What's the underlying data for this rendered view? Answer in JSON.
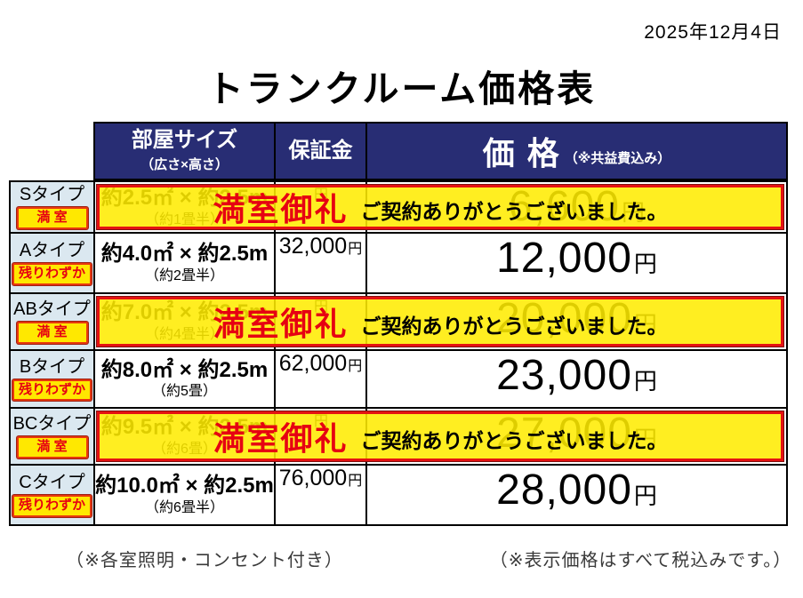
{
  "date": "2025年12月4日",
  "title": "トランクルーム価格表",
  "table": {
    "header": {
      "size_label": "部屋サイズ",
      "size_sub": "（広さ×高さ）",
      "deposit_label": "保証金",
      "price_label": "価 格",
      "price_sub": "（※共益費込み）"
    },
    "currency": "円",
    "rows": [
      {
        "type_label": "Sタイプ",
        "badge": "満 室",
        "status": "full",
        "size": "約2.5㎡ × 約2.5m",
        "size_sub": "（約1畳半）",
        "deposit": "",
        "price": "6,600",
        "banner_headline": "満室御礼",
        "banner_message": "ご契約ありがとうございました。"
      },
      {
        "type_label": "Aタイプ",
        "badge": "残りわずか",
        "status": "few",
        "size": "約4.0㎡ × 約2.5m",
        "size_sub": "（約2畳半）",
        "deposit": "32,000",
        "price": "12,000"
      },
      {
        "type_label": "ABタイプ",
        "badge": "満 室",
        "status": "full",
        "size": "約7.0㎡ × 約2.5m",
        "size_sub": "（約4畳半）",
        "deposit": "",
        "price": "20,000",
        "banner_headline": "満室御礼",
        "banner_message": "ご契約ありがとうございました。"
      },
      {
        "type_label": "Bタイプ",
        "badge": "残りわずか",
        "status": "few",
        "size": "約8.0㎡ × 約2.5m",
        "size_sub": "（約5畳）",
        "deposit": "62,000",
        "price": "23,000"
      },
      {
        "type_label": "BCタイプ",
        "badge": "満 室",
        "status": "full",
        "size": "約9.5㎡ × 約2.5m",
        "size_sub": "（約6畳）",
        "deposit": "",
        "price": "27,000",
        "banner_headline": "満室御礼",
        "banner_message": "ご契約ありがとうございました。"
      },
      {
        "type_label": "Cタイプ",
        "badge": "残りわずか",
        "status": "few",
        "size": "約10.0㎡ × 約2.5m",
        "size_sub": "（約6畳半）",
        "deposit": "76,000",
        "price": "28,000"
      }
    ]
  },
  "footnotes": {
    "left": "（※各室照明・コンセント付き）",
    "right": "（※表示価格はすべて税込みです。）"
  },
  "colors": {
    "header_bg": "#282d74",
    "type_cell_bg": "#dbe8f0",
    "accent_red": "#e60012",
    "banner_yellow": "#ffe800"
  }
}
